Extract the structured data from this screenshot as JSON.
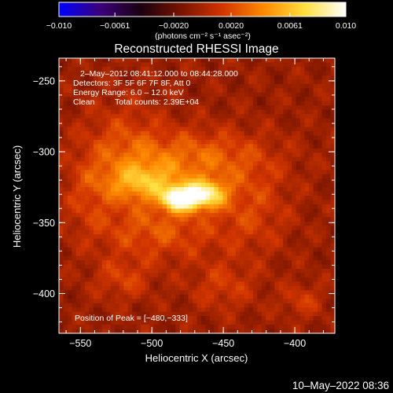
{
  "chart_data": {
    "type": "heatmap",
    "title": "Reconstructed RHESSI Image",
    "xlabel": "Heliocentric X (arcsec)",
    "ylabel": "Heliocentric Y (arcsec)",
    "xlim": [
      -565,
      -372
    ],
    "ylim": [
      -428,
      -234
    ],
    "x_ticks": [
      {
        "value": -550,
        "label": "−550"
      },
      {
        "value": -500,
        "label": "−500"
      },
      {
        "value": -450,
        "label": "−450"
      },
      {
        "value": -400,
        "label": "−400"
      }
    ],
    "y_ticks": [
      {
        "value": -250,
        "label": "−250"
      },
      {
        "value": -300,
        "label": "−300"
      },
      {
        "value": -350,
        "label": "−350"
      },
      {
        "value": -400,
        "label": "−400"
      }
    ],
    "colorbar": {
      "range": [
        -0.01,
        0.01
      ],
      "ticks": [
        {
          "value": -0.01,
          "label": "−0.010"
        },
        {
          "value": -0.0061,
          "label": "−0.0061"
        },
        {
          "value": -0.002,
          "label": "−0.0020"
        },
        {
          "value": 0.002,
          "label": "0.0020"
        },
        {
          "value": 0.0061,
          "label": "0.0061"
        },
        {
          "value": 0.01,
          "label": "0.010"
        }
      ],
      "units": "(photons cm⁻² s⁻¹ asec⁻²)",
      "colormap": [
        "#0000ff",
        "#3a007a",
        "#1a0010",
        "#7a1400",
        "#d23500",
        "#ff8a00",
        "#ffe040",
        "#ffffff"
      ]
    },
    "annotations": {
      "time_range": "2–May–2012 08:41:12.000 to 08:44:28.000",
      "detectors": "Detectors: 3F 5F 6F 7F 8F, Att 0",
      "energy_range": "Energy Range: 6.0 – 12.0 keV",
      "method": "Clean",
      "total_counts": "Total counts: 2.39E+04",
      "peak_position": "Position of Peak = [−480,−333]"
    },
    "peak": {
      "x": -480,
      "y": -333,
      "value": 0.01
    },
    "sources": [
      {
        "x": -480,
        "y": -333,
        "sx": 9,
        "sy": 6,
        "amp": 1.0
      },
      {
        "x": -462,
        "y": -330,
        "sx": 10,
        "sy": 7,
        "amp": 0.75
      },
      {
        "x": -505,
        "y": -322,
        "sx": 18,
        "sy": 9,
        "amp": 0.45
      },
      {
        "x": -470,
        "y": -305,
        "sx": 35,
        "sy": 14,
        "amp": 0.35
      },
      {
        "x": -495,
        "y": -355,
        "sx": 30,
        "sy": 15,
        "amp": 0.28
      },
      {
        "x": -520,
        "y": -300,
        "sx": 20,
        "sy": 25,
        "amp": 0.22
      },
      {
        "x": -430,
        "y": -340,
        "sx": 18,
        "sy": 22,
        "amp": 0.2
      },
      {
        "x": -520,
        "y": -390,
        "sx": 14,
        "sy": 10,
        "amp": 0.2
      },
      {
        "x": -450,
        "y": -395,
        "sx": 16,
        "sy": 12,
        "amp": 0.18
      },
      {
        "x": -395,
        "y": -405,
        "sx": 10,
        "sy": 8,
        "amp": 0.18
      },
      {
        "x": -545,
        "y": -330,
        "sx": 12,
        "sy": 20,
        "amp": 0.15
      }
    ],
    "footer_timestamp": "10–May–2022 08:36"
  }
}
